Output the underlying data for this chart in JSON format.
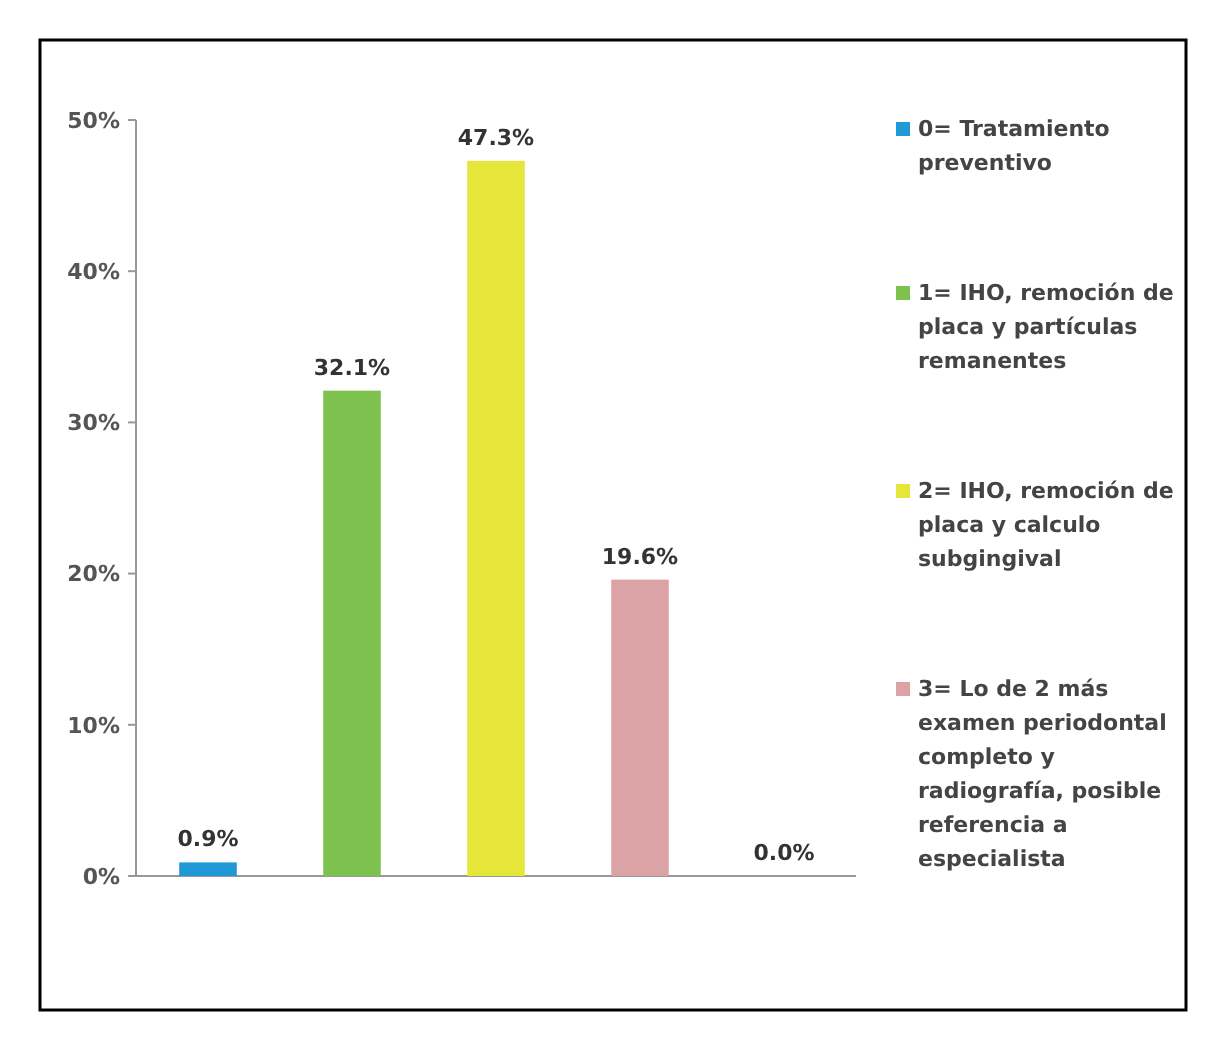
{
  "chart_data": {
    "type": "bar",
    "categories": [
      null,
      null,
      null,
      null,
      null
    ],
    "series": [
      {
        "name": "0= Tratamiento preventivo",
        "color": "#1f9ad6",
        "values": [
          0.9,
          null,
          null,
          null,
          null
        ],
        "value_labels": [
          "0.9%",
          null,
          null,
          null,
          null
        ]
      },
      {
        "name": "1= IHO, remoción de placa y partículas remanentes",
        "color": "#7dc24f",
        "values": [
          null,
          32.1,
          null,
          null,
          null
        ],
        "value_labels": [
          null,
          "32.1%",
          null,
          null,
          null
        ]
      },
      {
        "name": "2= IHO, remoción de placa y calculo subgingival",
        "color": "#e6e63a",
        "values": [
          null,
          null,
          47.3,
          null,
          null
        ],
        "value_labels": [
          null,
          null,
          "47.3%",
          null,
          null
        ]
      },
      {
        "name": "3= Lo de 2 más examen periodontal completo y radiografía, posible referencia a especialista",
        "color": "#dba3a6",
        "values": [
          null,
          null,
          null,
          19.6,
          null
        ],
        "value_labels": [
          null,
          null,
          null,
          "19.6%",
          null
        ]
      },
      {
        "values": [
          null,
          null,
          null,
          null,
          0.0
        ],
        "value_labels": [
          null,
          null,
          null,
          null,
          "0.0%"
        ]
      }
    ],
    "ylim": [
      0,
      50
    ],
    "yticks": [
      {
        "value": 0,
        "label": "0%"
      },
      {
        "value": 10,
        "label": "10%"
      },
      {
        "value": 20,
        "label": "20%"
      },
      {
        "value": 30,
        "label": "30%"
      },
      {
        "value": 40,
        "label": "40%"
      },
      {
        "value": 50,
        "label": "50%"
      }
    ],
    "legend": "right"
  }
}
